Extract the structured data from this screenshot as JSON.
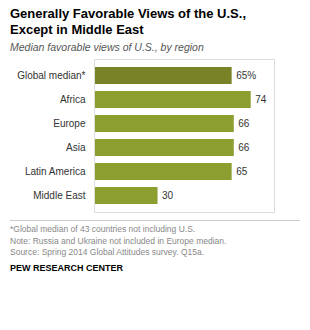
{
  "chart_data": {
    "type": "bar",
    "orientation": "horizontal",
    "title": "Generally Favorable Views of the U.S.,\nExcept in Middle East",
    "subtitle": "Median favorable views of U.S., by region",
    "categories": [
      "Global median*",
      "Africa",
      "Europe",
      "Asia",
      "Latin America",
      "Middle East"
    ],
    "values": [
      65,
      74,
      66,
      66,
      65,
      30
    ],
    "value_labels": [
      "65%",
      "74",
      "66",
      "66",
      "65",
      "30"
    ],
    "colors": [
      "#7a8228",
      "#8c9e30",
      "#8c9e30",
      "#8c9e30",
      "#8c9e30",
      "#8c9e30"
    ],
    "xlim": [
      0,
      85
    ],
    "data_labels": true,
    "tick_labels": "y",
    "grid": false,
    "annotations": [
      "*Global median of 43 countries not including U.S.",
      "Note: Russia and Ukraine not included in Europe median.",
      "Source: Spring 2014 Global Attitudes survey. Q15a.",
      "PEW RESEARCH CENTER"
    ]
  }
}
